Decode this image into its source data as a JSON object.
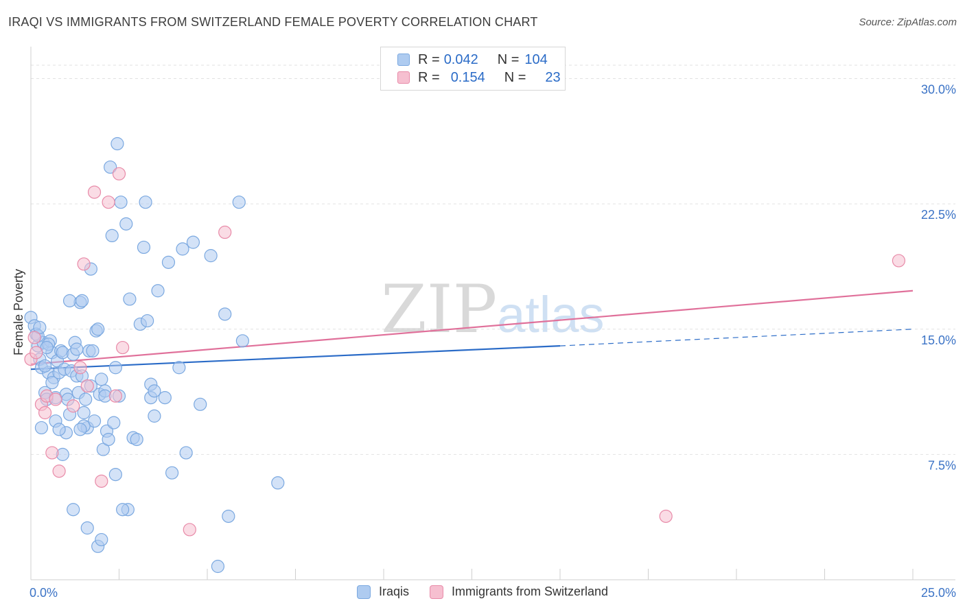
{
  "header": {
    "title": "IRAQI VS IMMIGRANTS FROM SWITZERLAND FEMALE POVERTY CORRELATION CHART",
    "source": "Source: ZipAtlas.com"
  },
  "legend": {
    "rows": [
      {
        "r_label": "R =",
        "r_value": "0.042",
        "n_label": "N =",
        "n_value": "104",
        "color": "#aecbf0",
        "border": "#7aa8e0"
      },
      {
        "r_label": "R =",
        "r_value": "0.154",
        "n_label": "N =",
        "n_value": "23",
        "color": "#f6bfd0",
        "border": "#e88aa8"
      }
    ]
  },
  "bottom_legend": [
    {
      "label": "Iraqis",
      "color": "#aecbf0",
      "border": "#7aa8e0"
    },
    {
      "label": "Immigrants from Switzerland",
      "color": "#f6bfd0",
      "border": "#e88aa8"
    }
  ],
  "watermark": {
    "zip": "ZIP",
    "atlas": "atlas"
  },
  "chart_data": {
    "type": "scatter",
    "title": "IRAQI VS IMMIGRANTS FROM SWITZERLAND FEMALE POVERTY CORRELATION CHART",
    "xlabel": "",
    "ylabel": "Female Poverty",
    "xlim": [
      0,
      25
    ],
    "ylim": [
      0,
      31.5
    ],
    "x_tick_labels": [
      "0.0%",
      "25.0%"
    ],
    "y_ticks": [
      7.5,
      15.0,
      22.5,
      30.0
    ],
    "y_tick_labels": [
      "7.5%",
      "15.0%",
      "22.5%",
      "30.0%"
    ],
    "grid": "horizontal dashed",
    "series": [
      {
        "name": "Iraqis",
        "color": "#7aa8e0",
        "fill": "#aecbf0",
        "trend": {
          "x0": 0,
          "y0": 12.6,
          "x1": 15,
          "y1": 14.0,
          "dash_to_x": 25,
          "dash_to_y": 15.0,
          "color": "#2a6bc7"
        },
        "points": [
          [
            0.0,
            15.7
          ],
          [
            0.1,
            15.2
          ],
          [
            0.15,
            14.7
          ],
          [
            0.2,
            14.0
          ],
          [
            0.25,
            13.2
          ],
          [
            0.3,
            12.7
          ],
          [
            0.35,
            14.2
          ],
          [
            0.4,
            11.2
          ],
          [
            0.45,
            10.8
          ],
          [
            0.5,
            12.4
          ],
          [
            0.55,
            14.3
          ],
          [
            0.6,
            13.6
          ],
          [
            0.65,
            12.1
          ],
          [
            0.7,
            10.9
          ],
          [
            0.75,
            13.1
          ],
          [
            0.8,
            12.4
          ],
          [
            0.85,
            13.7
          ],
          [
            0.9,
            13.6
          ],
          [
            0.95,
            12.6
          ],
          [
            1.0,
            11.1
          ],
          [
            1.05,
            10.8
          ],
          [
            1.1,
            9.9
          ],
          [
            1.15,
            12.5
          ],
          [
            1.2,
            13.5
          ],
          [
            1.25,
            14.2
          ],
          [
            1.3,
            13.8
          ],
          [
            1.35,
            11.2
          ],
          [
            1.4,
            16.6
          ],
          [
            1.45,
            16.7
          ],
          [
            1.5,
            10.0
          ],
          [
            1.55,
            10.8
          ],
          [
            1.6,
            9.1
          ],
          [
            1.65,
            13.7
          ],
          [
            1.7,
            18.6
          ],
          [
            1.75,
            13.7
          ],
          [
            1.8,
            9.5
          ],
          [
            1.85,
            14.9
          ],
          [
            1.9,
            15.0
          ],
          [
            1.95,
            11.1
          ],
          [
            2.0,
            12.0
          ],
          [
            2.05,
            7.8
          ],
          [
            2.1,
            11.3
          ],
          [
            2.15,
            8.9
          ],
          [
            2.2,
            8.4
          ],
          [
            2.25,
            24.7
          ],
          [
            2.3,
            20.6
          ],
          [
            2.35,
            9.4
          ],
          [
            2.4,
            6.3
          ],
          [
            2.45,
            26.1
          ],
          [
            2.5,
            11.0
          ],
          [
            2.55,
            22.6
          ],
          [
            2.7,
            21.3
          ],
          [
            2.75,
            4.2
          ],
          [
            2.8,
            16.8
          ],
          [
            2.9,
            8.5
          ],
          [
            3.1,
            15.3
          ],
          [
            3.2,
            19.9
          ],
          [
            3.25,
            22.6
          ],
          [
            3.3,
            15.5
          ],
          [
            3.4,
            10.9
          ],
          [
            3.5,
            9.8
          ],
          [
            3.6,
            17.3
          ],
          [
            3.8,
            10.9
          ],
          [
            3.9,
            19.0
          ],
          [
            4.0,
            6.4
          ],
          [
            4.2,
            12.7
          ],
          [
            4.3,
            19.8
          ],
          [
            4.6,
            20.2
          ],
          [
            4.8,
            10.5
          ],
          [
            5.1,
            19.4
          ],
          [
            5.5,
            15.9
          ],
          [
            5.6,
            3.8
          ],
          [
            5.9,
            22.6
          ],
          [
            6.0,
            14.3
          ],
          [
            7.0,
            5.8
          ],
          [
            1.3,
            12.2
          ],
          [
            0.5,
            14.1
          ],
          [
            0.7,
            9.5
          ],
          [
            0.9,
            7.5
          ],
          [
            1.2,
            4.2
          ],
          [
            1.5,
            9.2
          ],
          [
            1.6,
            3.1
          ],
          [
            1.9,
            2.0
          ],
          [
            2.0,
            2.4
          ],
          [
            1.4,
            9.0
          ],
          [
            2.6,
            4.2
          ],
          [
            3.4,
            11.7
          ],
          [
            3.0,
            8.4
          ],
          [
            5.3,
            0.8
          ],
          [
            0.3,
            9.1
          ],
          [
            1.0,
            8.8
          ],
          [
            2.4,
            12.7
          ],
          [
            1.1,
            16.7
          ],
          [
            0.2,
            14.6
          ],
          [
            0.6,
            11.8
          ],
          [
            0.8,
            9.0
          ],
          [
            1.7,
            11.6
          ],
          [
            2.1,
            11.0
          ],
          [
            3.5,
            11.3
          ],
          [
            0.4,
            12.8
          ],
          [
            0.45,
            13.9
          ],
          [
            1.45,
            12.2
          ],
          [
            0.25,
            15.1
          ],
          [
            4.4,
            7.6
          ]
        ]
      },
      {
        "name": "Immigrants from Switzerland",
        "color": "#e88aa8",
        "fill": "#f6bfd0",
        "trend": {
          "x0": 0,
          "y0": 12.9,
          "x1": 25,
          "y1": 17.3,
          "color": "#e0709a"
        },
        "points": [
          [
            0.0,
            13.2
          ],
          [
            0.1,
            14.5
          ],
          [
            0.15,
            13.6
          ],
          [
            0.3,
            10.5
          ],
          [
            0.4,
            10.0
          ],
          [
            0.45,
            11.0
          ],
          [
            0.6,
            7.6
          ],
          [
            0.7,
            10.8
          ],
          [
            0.8,
            6.5
          ],
          [
            1.2,
            10.4
          ],
          [
            1.4,
            12.7
          ],
          [
            1.5,
            18.9
          ],
          [
            1.6,
            11.6
          ],
          [
            1.8,
            23.2
          ],
          [
            2.0,
            5.9
          ],
          [
            2.2,
            22.6
          ],
          [
            2.4,
            11.0
          ],
          [
            2.5,
            24.3
          ],
          [
            2.6,
            13.9
          ],
          [
            4.5,
            3.0
          ],
          [
            5.5,
            20.8
          ],
          [
            18.0,
            3.8
          ],
          [
            24.6,
            19.1
          ]
        ]
      }
    ]
  }
}
